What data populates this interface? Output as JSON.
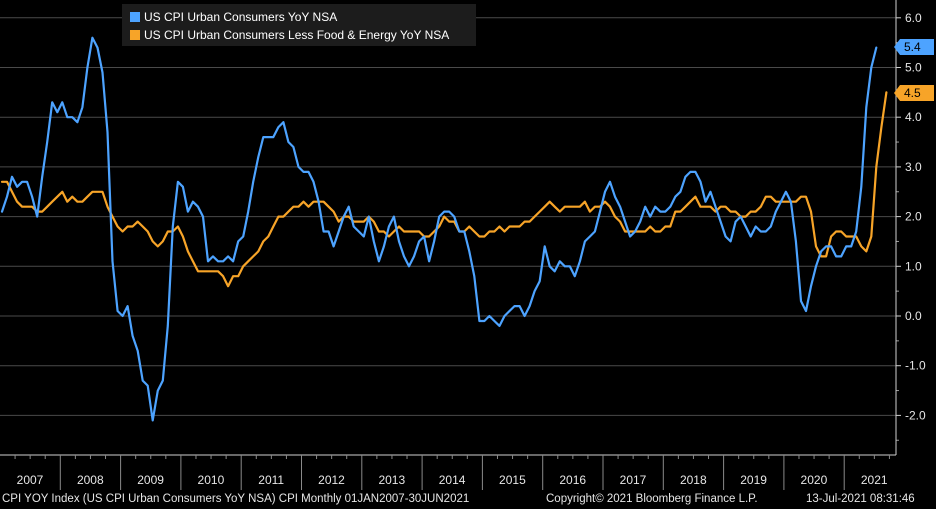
{
  "chart_data": {
    "type": "line",
    "title": "",
    "xlabel": "",
    "ylabel": "",
    "ylim": [
      -3.0,
      6.3
    ],
    "y_ticks": [
      "6.0",
      "5.0",
      "4.0",
      "3.0",
      "2.0",
      "1.0",
      "0.0",
      "-1.0",
      "-2.0"
    ],
    "y_tick_values": [
      6,
      5,
      4,
      3,
      2,
      1,
      0,
      -1,
      -2
    ],
    "year_labels": [
      "2007",
      "2008",
      "2009",
      "2010",
      "2011",
      "2012",
      "2013",
      "2014",
      "2015",
      "2016",
      "2017",
      "2018",
      "2019",
      "2020",
      "2021"
    ],
    "x_start": "2007-01",
    "grid": true,
    "legend_position": "top-left",
    "series": [
      {
        "name": "US CPI Urban Consumers YoY NSA",
        "color": "#4da3ff",
        "last_label": "5.4",
        "values": [
          2.1,
          2.4,
          2.8,
          2.6,
          2.7,
          2.7,
          2.4,
          2.0,
          2.8,
          3.5,
          4.3,
          4.1,
          4.3,
          4.0,
          4.0,
          3.9,
          4.2,
          5.0,
          5.6,
          5.4,
          4.9,
          3.7,
          1.1,
          0.1,
          0.0,
          0.2,
          -0.4,
          -0.7,
          -1.3,
          -1.4,
          -2.1,
          -1.5,
          -1.3,
          -0.2,
          1.8,
          2.7,
          2.6,
          2.1,
          2.3,
          2.2,
          2.0,
          1.1,
          1.2,
          1.1,
          1.1,
          1.2,
          1.1,
          1.5,
          1.6,
          2.1,
          2.7,
          3.2,
          3.6,
          3.6,
          3.6,
          3.8,
          3.9,
          3.5,
          3.4,
          3.0,
          2.9,
          2.9,
          2.7,
          2.3,
          1.7,
          1.7,
          1.4,
          1.7,
          2.0,
          2.2,
          1.8,
          1.7,
          1.6,
          2.0,
          1.5,
          1.1,
          1.4,
          1.8,
          2.0,
          1.5,
          1.2,
          1.0,
          1.2,
          1.5,
          1.6,
          1.1,
          1.5,
          2.0,
          2.1,
          2.1,
          2.0,
          1.7,
          1.7,
          1.3,
          0.8,
          -0.1,
          -0.1,
          0.0,
          -0.1,
          -0.2,
          0.0,
          0.1,
          0.2,
          0.2,
          0.0,
          0.2,
          0.5,
          0.7,
          1.4,
          1.0,
          0.9,
          1.1,
          1.0,
          1.0,
          0.8,
          1.1,
          1.5,
          1.6,
          1.7,
          2.1,
          2.5,
          2.7,
          2.4,
          2.2,
          1.9,
          1.6,
          1.7,
          1.9,
          2.2,
          2.0,
          2.2,
          2.1,
          2.1,
          2.2,
          2.4,
          2.5,
          2.8,
          2.9,
          2.9,
          2.7,
          2.3,
          2.5,
          2.2,
          1.9,
          1.6,
          1.5,
          1.9,
          2.0,
          1.8,
          1.6,
          1.8,
          1.7,
          1.7,
          1.8,
          2.1,
          2.3,
          2.5,
          2.3,
          1.5,
          0.3,
          0.1,
          0.6,
          1.0,
          1.3,
          1.4,
          1.4,
          1.2,
          1.2,
          1.4,
          1.4,
          1.7,
          2.6,
          4.2,
          5.0,
          5.4
        ]
      },
      {
        "name": "US CPI Urban Consumers Less Food & Energy YoY NSA",
        "color": "#f7a428",
        "last_label": "4.5",
        "values": [
          2.7,
          2.7,
          2.5,
          2.3,
          2.2,
          2.2,
          2.2,
          2.1,
          2.1,
          2.2,
          2.3,
          2.4,
          2.5,
          2.3,
          2.4,
          2.3,
          2.3,
          2.4,
          2.5,
          2.5,
          2.5,
          2.2,
          2.0,
          1.8,
          1.7,
          1.8,
          1.8,
          1.9,
          1.8,
          1.7,
          1.5,
          1.4,
          1.5,
          1.7,
          1.7,
          1.8,
          1.6,
          1.3,
          1.1,
          0.9,
          0.9,
          0.9,
          0.9,
          0.9,
          0.8,
          0.6,
          0.8,
          0.8,
          1.0,
          1.1,
          1.2,
          1.3,
          1.5,
          1.6,
          1.8,
          2.0,
          2.0,
          2.1,
          2.2,
          2.2,
          2.3,
          2.2,
          2.3,
          2.3,
          2.3,
          2.2,
          2.1,
          1.9,
          2.0,
          2.0,
          1.9,
          1.9,
          1.9,
          2.0,
          1.9,
          1.7,
          1.7,
          1.6,
          1.7,
          1.8,
          1.7,
          1.7,
          1.7,
          1.7,
          1.6,
          1.6,
          1.7,
          1.8,
          2.0,
          1.9,
          1.9,
          1.7,
          1.7,
          1.8,
          1.7,
          1.6,
          1.6,
          1.7,
          1.7,
          1.8,
          1.7,
          1.8,
          1.8,
          1.8,
          1.9,
          1.9,
          2.0,
          2.1,
          2.2,
          2.3,
          2.2,
          2.1,
          2.2,
          2.2,
          2.2,
          2.2,
          2.3,
          2.1,
          2.2,
          2.2,
          2.3,
          2.2,
          2.0,
          1.9,
          1.7,
          1.7,
          1.7,
          1.7,
          1.7,
          1.8,
          1.7,
          1.7,
          1.8,
          1.8,
          2.1,
          2.1,
          2.2,
          2.3,
          2.4,
          2.2,
          2.2,
          2.2,
          2.1,
          2.2,
          2.2,
          2.1,
          2.1,
          2.0,
          2.0,
          2.1,
          2.1,
          2.2,
          2.4,
          2.4,
          2.3,
          2.3,
          2.3,
          2.3,
          2.3,
          2.4,
          2.4,
          2.1,
          1.4,
          1.2,
          1.2,
          1.6,
          1.7,
          1.7,
          1.6,
          1.6,
          1.6,
          1.4,
          1.3,
          1.6,
          3.0,
          3.8,
          4.5
        ]
      }
    ]
  },
  "footer": {
    "description": "CPI YOY Index (US CPI Urban Consumers YoY NSA) CPI  Monthly 01JAN2007-30JUN2021",
    "copyright": "Copyright© 2021 Bloomberg Finance L.P.",
    "timestamp": "13-Jul-2021 08:31:46"
  }
}
